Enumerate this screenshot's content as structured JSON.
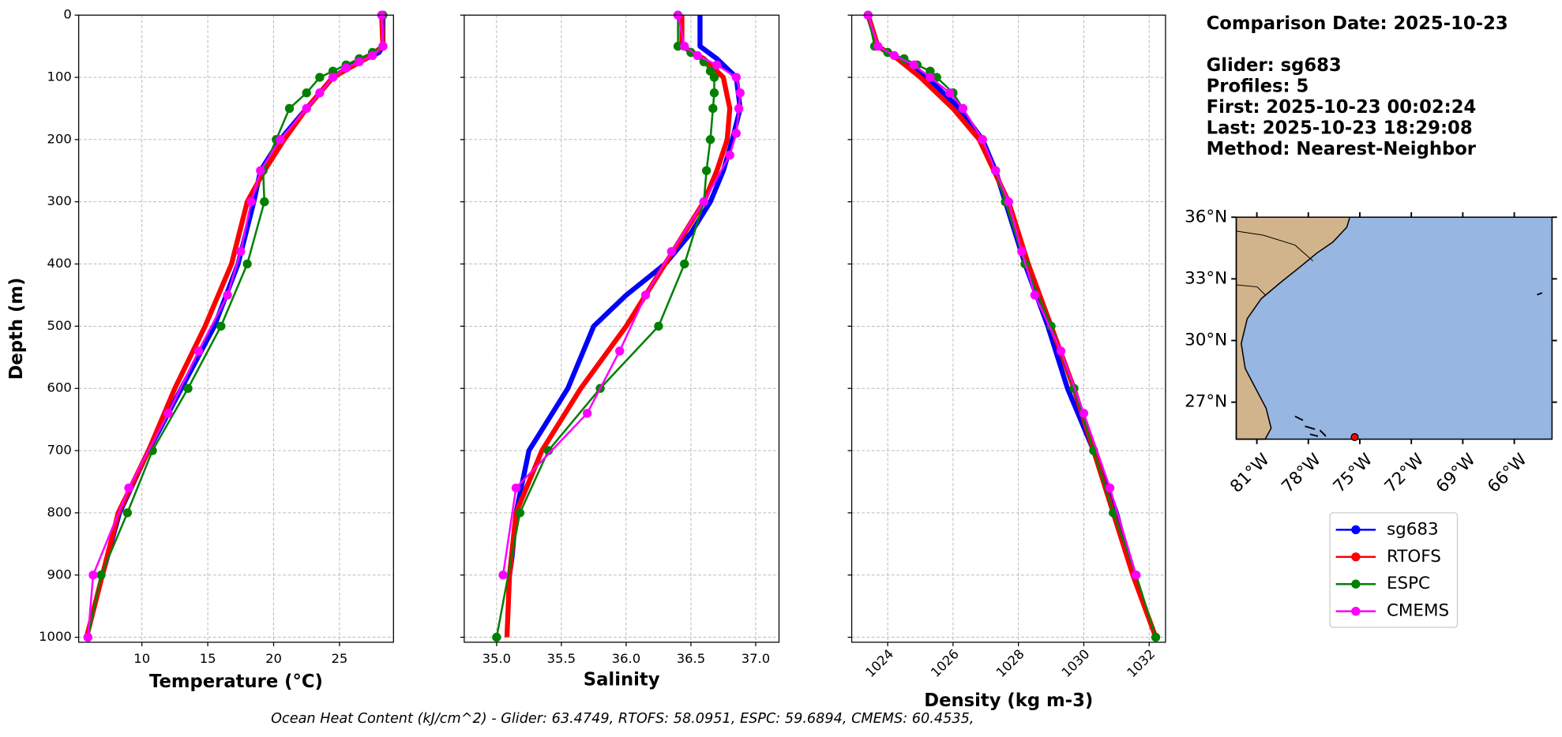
{
  "chart_data": [
    {
      "type": "line",
      "xlabel": "Temperature (°C)",
      "ylabel": "Depth (m)",
      "xlim": [
        5.2,
        29.1
      ],
      "ylim": [
        0,
        1008
      ],
      "invert_y": true,
      "xticks": [
        10,
        15,
        20,
        25
      ],
      "yticks": [
        0,
        100,
        200,
        300,
        400,
        500,
        600,
        700,
        800,
        900,
        1000
      ],
      "ytick_labels": true,
      "grid": true,
      "series": [
        {
          "name": "sg683",
          "color": "#0000ff",
          "depths": [
            0,
            50,
            60,
            80,
            100,
            150,
            200,
            250,
            300,
            400,
            500,
            600,
            700,
            800,
            900
          ],
          "values": [
            28.3,
            28.3,
            28,
            26,
            24.5,
            22.5,
            20.5,
            19,
            18.5,
            17.3,
            15.5,
            13,
            10.5,
            8.3,
            7.0
          ]
        },
        {
          "name": "RTOFS",
          "color": "#ff0000",
          "depths": [
            0,
            50,
            70,
            100,
            150,
            200,
            250,
            300,
            400,
            500,
            600,
            700,
            800,
            900,
            1000
          ],
          "values": [
            28.2,
            28.3,
            27,
            24.5,
            22.5,
            20.8,
            19.3,
            18,
            16.8,
            14.8,
            12.5,
            10.5,
            8.2,
            7,
            5.8
          ]
        },
        {
          "name": "ESPC",
          "color": "#008000",
          "depths": [
            0,
            50,
            60,
            70,
            80,
            90,
            100,
            125,
            150,
            200,
            250,
            300,
            400,
            500,
            600,
            700,
            800,
            900,
            1000
          ],
          "values": [
            28.3,
            28.3,
            27.5,
            26.5,
            25.5,
            24.5,
            23.5,
            22.5,
            21.2,
            20.2,
            19.2,
            19.3,
            18,
            16,
            13.5,
            10.8,
            8.9,
            6.9,
            5.9
          ]
        },
        {
          "name": "CMEMS",
          "color": "#ff00ff",
          "depths": [
            0,
            50,
            65,
            75,
            85,
            100,
            125,
            150,
            200,
            250,
            300,
            380,
            450,
            540,
            640,
            760,
            900,
            1000
          ],
          "values": [
            28.2,
            28.3,
            27.5,
            26.5,
            25.5,
            24.5,
            23.5,
            22.5,
            20.5,
            19,
            18.3,
            17.5,
            16.5,
            14.3,
            12,
            9,
            6.3,
            5.9
          ]
        }
      ]
    },
    {
      "type": "line",
      "xlabel": "Salinity",
      "xlim": [
        34.75,
        37.18
      ],
      "ylim": [
        0,
        1008
      ],
      "invert_y": true,
      "xticks": [
        {
          "value": 35,
          "label": "35.0"
        },
        35.5,
        {
          "value": 36,
          "label": "36.0"
        },
        36.5,
        {
          "value": 37,
          "label": "37.0"
        }
      ],
      "yticks": [
        0,
        100,
        200,
        300,
        400,
        500,
        600,
        700,
        800,
        900,
        1000
      ],
      "ytick_labels": false,
      "grid": true,
      "series": [
        {
          "name": "sg683",
          "color": "#0000ff",
          "depths": [
            0,
            50,
            70,
            100,
            150,
            200,
            250,
            300,
            350,
            400,
            450,
            500,
            600,
            650,
            700,
            800,
            870,
            900
          ],
          "values": [
            36.57,
            36.57,
            36.7,
            36.85,
            36.88,
            36.82,
            36.75,
            36.65,
            36.5,
            36.3,
            36.0,
            35.75,
            35.55,
            35.4,
            35.25,
            35.15,
            35.12,
            35.1
          ]
        },
        {
          "name": "RTOFS",
          "color": "#ff0000",
          "depths": [
            0,
            50,
            70,
            100,
            150,
            200,
            250,
            300,
            350,
            400,
            500,
            600,
            700,
            800,
            900,
            1000
          ],
          "values": [
            36.43,
            36.43,
            36.6,
            36.75,
            36.8,
            36.78,
            36.7,
            36.6,
            36.45,
            36.3,
            36.0,
            35.65,
            35.35,
            35.15,
            35.1,
            35.08
          ]
        },
        {
          "name": "ESPC",
          "color": "#008000",
          "depths": [
            0,
            50,
            60,
            75,
            90,
            100,
            125,
            150,
            200,
            250,
            300,
            400,
            500,
            600,
            700,
            800,
            1000
          ],
          "values": [
            36.4,
            36.4,
            36.5,
            36.6,
            36.65,
            36.68,
            36.68,
            36.67,
            36.65,
            36.62,
            36.6,
            36.45,
            36.25,
            35.8,
            35.4,
            35.18,
            35.0
          ]
        },
        {
          "name": "CMEMS",
          "color": "#ff00ff",
          "depths": [
            0,
            50,
            65,
            80,
            100,
            125,
            150,
            190,
            225,
            300,
            380,
            450,
            540,
            640,
            760,
            900
          ],
          "values": [
            36.4,
            36.45,
            36.55,
            36.7,
            36.85,
            36.88,
            36.87,
            36.85,
            36.8,
            36.6,
            36.35,
            36.15,
            35.95,
            35.7,
            35.15,
            35.05
          ]
        }
      ]
    },
    {
      "type": "line",
      "xlabel": "Density (kg m-3)",
      "xlim": [
        1022.9,
        1032.5
      ],
      "ylim": [
        0,
        1008
      ],
      "invert_y": true,
      "xtick_rotation": 45,
      "xticks": [
        1024,
        1026,
        1028,
        1030,
        1032
      ],
      "yticks": [
        0,
        100,
        200,
        300,
        400,
        500,
        600,
        700,
        800,
        900,
        1000
      ],
      "ytick_labels": false,
      "grid": true,
      "series": [
        {
          "name": "sg683",
          "color": "#0000ff",
          "depths": [
            0,
            50,
            60,
            100,
            150,
            200,
            250,
            300,
            400,
            500,
            600,
            700,
            800,
            880
          ],
          "values": [
            1023.4,
            1023.7,
            1024.0,
            1025.2,
            1026.2,
            1026.9,
            1027.3,
            1027.6,
            1028.2,
            1028.9,
            1029.5,
            1030.3,
            1031.0,
            1031.4
          ]
        },
        {
          "name": "RTOFS",
          "color": "#ff0000",
          "depths": [
            0,
            50,
            70,
            100,
            150,
            200,
            300,
            400,
            500,
            600,
            700,
            800,
            900,
            1000
          ],
          "values": [
            1023.4,
            1023.7,
            1024.3,
            1025.0,
            1026.0,
            1026.8,
            1027.7,
            1028.3,
            1029.0,
            1029.7,
            1030.3,
            1030.9,
            1031.5,
            1032.2
          ]
        },
        {
          "name": "ESPC",
          "color": "#008000",
          "depths": [
            0,
            50,
            60,
            70,
            80,
            90,
            100,
            125,
            150,
            200,
            250,
            300,
            400,
            500,
            600,
            700,
            800,
            900,
            1000
          ],
          "values": [
            1023.4,
            1023.6,
            1024.0,
            1024.5,
            1024.9,
            1025.3,
            1025.5,
            1026.0,
            1026.3,
            1026.9,
            1027.3,
            1027.6,
            1028.2,
            1029.0,
            1029.7,
            1030.3,
            1030.9,
            1031.6,
            1032.2
          ]
        },
        {
          "name": "CMEMS",
          "color": "#ff00ff",
          "depths": [
            0,
            50,
            65,
            80,
            100,
            125,
            150,
            200,
            250,
            300,
            380,
            450,
            540,
            640,
            760,
            900
          ],
          "values": [
            1023.4,
            1023.7,
            1024.2,
            1024.8,
            1025.3,
            1025.9,
            1026.3,
            1026.9,
            1027.3,
            1027.7,
            1028.1,
            1028.5,
            1029.3,
            1030.0,
            1030.8,
            1031.6
          ]
        }
      ]
    }
  ],
  "info": {
    "lines": [
      "Comparison Date: 2025-10-23",
      "Glider: sg683",
      "Profiles: 5",
      "First: 2025-10-23 00:02:24",
      "Last: 2025-10-23 18:29:08",
      "Method: Nearest-Neighbor"
    ]
  },
  "map": {
    "lonlim": [
      -82.2,
      -63.8
    ],
    "latlim": [
      25.2,
      36.0
    ],
    "lonticks": [
      {
        "value": -81,
        "label": "81°W"
      },
      {
        "value": -78,
        "label": "78°W"
      },
      {
        "value": -75,
        "label": "75°W"
      },
      {
        "value": -72,
        "label": "72°W"
      },
      {
        "value": -69,
        "label": "69°W"
      },
      {
        "value": -66,
        "label": "66°W"
      }
    ],
    "latticks": [
      {
        "value": 36,
        "label": "36°N"
      },
      {
        "value": 33,
        "label": "33°N"
      },
      {
        "value": 30,
        "label": "30°N"
      },
      {
        "value": 27,
        "label": "27°N"
      }
    ],
    "glider": {
      "lon": -75.3,
      "lat": 25.3,
      "color": "#ff0000"
    }
  },
  "footer": "Ocean Heat Content (kJ/cm^2) - Glider: 63.4749,  RTOFS: 58.0951,  ESPC: 59.6894,  CMEMS: 60.4535,"
}
